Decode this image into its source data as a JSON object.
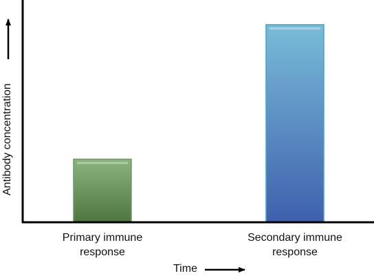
{
  "chart_data": {
    "type": "bar",
    "categories": [
      "Primary immune response",
      "Secondary immune response"
    ],
    "category_lines": [
      [
        "Primary immune",
        "response"
      ],
      [
        "Secondary immune",
        "response"
      ]
    ],
    "values": [
      23,
      72
    ],
    "ylim": [
      0,
      81
    ],
    "xlabel": "Time",
    "ylabel": "Antibody concentration",
    "grid": false,
    "colors": [
      {
        "top": "#8ab47e",
        "bottom": "#4f7540",
        "border": "#6f9a62"
      },
      {
        "top": "#79bcd8",
        "bottom": "#3f60ad",
        "border": "#3aa9c4"
      }
    ],
    "axis_color": "#000000"
  }
}
